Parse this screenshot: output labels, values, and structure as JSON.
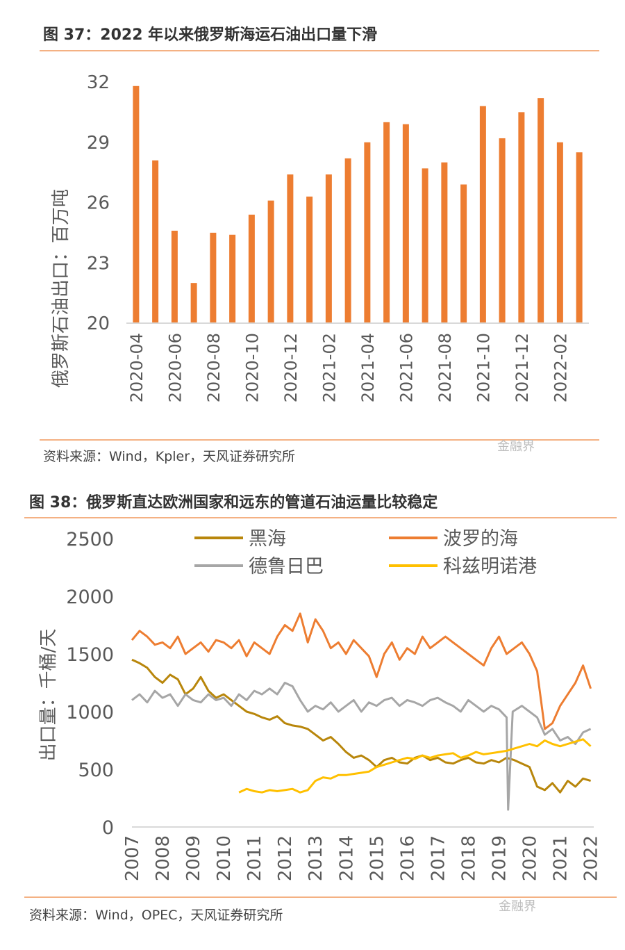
{
  "figures": [
    {
      "title": "图 37：2022 年以来俄罗斯海运石油出口量下滑",
      "source": "资料来源：Wind，Kpler，天风证券研究所",
      "watermark": "金融界"
    },
    {
      "title": "图 38：俄罗斯直达欧洲国家和远东的管道石油运量比较稳定",
      "source": "资料来源：Wind，OPEC，天风证券研究所",
      "watermark": "金融界"
    }
  ],
  "chart_data": [
    {
      "type": "bar",
      "title": "图 37：2022 年以来俄罗斯海运石油出口量下滑",
      "ylabel": "俄罗斯石油出口：百万吨",
      "xlabel": "",
      "ylim": [
        20,
        32
      ],
      "yticks": [
        20,
        23,
        26,
        29,
        32
      ],
      "grid": false,
      "color": "#ed7d31",
      "categories": [
        "2020-04",
        "2020-05",
        "2020-06",
        "2020-07",
        "2020-08",
        "2020-09",
        "2020-10",
        "2020-11",
        "2020-12",
        "2021-01",
        "2021-02",
        "2021-03",
        "2021-04",
        "2021-05",
        "2021-06",
        "2021-07",
        "2021-08",
        "2021-09",
        "2021-10",
        "2021-11",
        "2021-12",
        "2022-01",
        "2022-02",
        "2022-03"
      ],
      "xtick_labels": [
        "2020-04",
        "2020-06",
        "2020-08",
        "2020-10",
        "2020-12",
        "2021-02",
        "2021-04",
        "2021-06",
        "2021-08",
        "2021-10",
        "2021-12",
        "2022-02"
      ],
      "values": [
        31.8,
        28.1,
        24.6,
        22.0,
        24.5,
        24.4,
        25.4,
        26.1,
        27.4,
        26.3,
        27.4,
        28.2,
        29.0,
        30.0,
        29.9,
        27.7,
        28.0,
        26.9,
        30.8,
        29.2,
        30.5,
        31.2,
        29.0,
        28.5
      ]
    },
    {
      "type": "line",
      "title": "图 38：俄罗斯直达欧洲国家和远东的管道石油运量比较稳定",
      "ylabel": "出口量：千桶/天",
      "xlabel": "",
      "ylim": [
        0,
        2500
      ],
      "yticks": [
        0,
        500,
        1000,
        1500,
        2000,
        2500
      ],
      "xlim": [
        2007,
        2022.1
      ],
      "xticks": [
        2007,
        2008,
        2009,
        2010,
        2011,
        2012,
        2013,
        2014,
        2015,
        2016,
        2017,
        2018,
        2019,
        2020,
        2021,
        2022
      ],
      "grid": false,
      "legend": "top",
      "series": [
        {
          "name": "黑海",
          "color": "#b8860b",
          "x": [
            2007.0,
            2007.25,
            2007.5,
            2007.75,
            2008.0,
            2008.25,
            2008.5,
            2008.75,
            2009.0,
            2009.25,
            2009.5,
            2009.75,
            2010.0,
            2010.25,
            2010.5,
            2010.75,
            2011.0,
            2011.25,
            2011.5,
            2011.75,
            2012.0,
            2012.25,
            2012.5,
            2012.75,
            2013.0,
            2013.25,
            2013.5,
            2013.75,
            2014.0,
            2014.25,
            2014.5,
            2014.75,
            2015.0,
            2015.25,
            2015.5,
            2015.75,
            2016.0,
            2016.25,
            2016.5,
            2016.75,
            2017.0,
            2017.25,
            2017.5,
            2017.75,
            2018.0,
            2018.25,
            2018.5,
            2018.75,
            2019.0,
            2019.25,
            2019.5,
            2019.75,
            2020.0,
            2020.25,
            2020.5,
            2020.75,
            2021.0,
            2021.25,
            2021.5,
            2021.75,
            2022.0
          ],
          "y": [
            1450,
            1420,
            1380,
            1300,
            1250,
            1320,
            1280,
            1150,
            1200,
            1300,
            1180,
            1120,
            1150,
            1100,
            1050,
            1000,
            980,
            950,
            930,
            960,
            900,
            880,
            870,
            850,
            800,
            750,
            780,
            720,
            650,
            600,
            620,
            580,
            520,
            580,
            600,
            560,
            550,
            600,
            620,
            580,
            600,
            560,
            550,
            580,
            600,
            560,
            550,
            580,
            560,
            600,
            580,
            550,
            520,
            350,
            320,
            380,
            300,
            400,
            350,
            420,
            400
          ]
        },
        {
          "name": "波罗的海",
          "color": "#ed7d31",
          "x": [
            2007.0,
            2007.25,
            2007.5,
            2007.75,
            2008.0,
            2008.25,
            2008.5,
            2008.75,
            2009.0,
            2009.25,
            2009.5,
            2009.75,
            2010.0,
            2010.25,
            2010.5,
            2010.75,
            2011.0,
            2011.25,
            2011.5,
            2011.75,
            2012.0,
            2012.25,
            2012.5,
            2012.75,
            2013.0,
            2013.25,
            2013.5,
            2013.75,
            2014.0,
            2014.25,
            2014.5,
            2014.75,
            2015.0,
            2015.25,
            2015.5,
            2015.75,
            2016.0,
            2016.25,
            2016.5,
            2016.75,
            2017.0,
            2017.25,
            2017.5,
            2017.75,
            2018.0,
            2018.25,
            2018.5,
            2018.75,
            2019.0,
            2019.25,
            2019.5,
            2019.75,
            2020.0,
            2020.25,
            2020.5,
            2020.75,
            2021.0,
            2021.25,
            2021.5,
            2021.75,
            2022.0
          ],
          "y": [
            1620,
            1700,
            1650,
            1580,
            1600,
            1550,
            1650,
            1500,
            1550,
            1600,
            1520,
            1620,
            1600,
            1550,
            1620,
            1480,
            1600,
            1550,
            1500,
            1650,
            1750,
            1700,
            1850,
            1600,
            1800,
            1700,
            1550,
            1600,
            1500,
            1620,
            1550,
            1480,
            1300,
            1500,
            1600,
            1450,
            1550,
            1500,
            1650,
            1550,
            1600,
            1650,
            1600,
            1550,
            1500,
            1450,
            1400,
            1550,
            1650,
            1500,
            1550,
            1600,
            1500,
            1350,
            850,
            900,
            1050,
            1150,
            1250,
            1400,
            1200
          ]
        },
        {
          "name": "德鲁日巴",
          "color": "#a6a6a6",
          "x": [
            2007.0,
            2007.25,
            2007.5,
            2007.75,
            2008.0,
            2008.25,
            2008.5,
            2008.75,
            2009.0,
            2009.25,
            2009.5,
            2009.75,
            2010.0,
            2010.25,
            2010.5,
            2010.75,
            2011.0,
            2011.25,
            2011.5,
            2011.75,
            2012.0,
            2012.25,
            2012.5,
            2012.75,
            2013.0,
            2013.25,
            2013.5,
            2013.75,
            2014.0,
            2014.25,
            2014.5,
            2014.75,
            2015.0,
            2015.25,
            2015.5,
            2015.75,
            2016.0,
            2016.25,
            2016.5,
            2016.75,
            2017.0,
            2017.25,
            2017.5,
            2017.75,
            2018.0,
            2018.25,
            2018.5,
            2018.75,
            2019.0,
            2019.25,
            2019.3,
            2019.45,
            2019.75,
            2020.0,
            2020.25,
            2020.5,
            2020.75,
            2021.0,
            2021.25,
            2021.5,
            2021.75,
            2022.0
          ],
          "y": [
            1100,
            1150,
            1080,
            1180,
            1120,
            1150,
            1050,
            1150,
            1100,
            1080,
            1150,
            1100,
            1120,
            1050,
            1150,
            1100,
            1180,
            1150,
            1200,
            1150,
            1250,
            1220,
            1100,
            1000,
            1050,
            1020,
            1080,
            1000,
            1050,
            1100,
            1000,
            1080,
            1050,
            1100,
            1120,
            1050,
            1100,
            1080,
            1050,
            1100,
            1120,
            1080,
            1050,
            1000,
            1100,
            1050,
            1000,
            1050,
            1020,
            950,
            150,
            1000,
            1050,
            1000,
            950,
            800,
            850,
            750,
            780,
            720,
            820,
            850
          ]
        },
        {
          "name": "科兹明诺港",
          "color": "#ffc000",
          "x": [
            2010.5,
            2010.75,
            2011.0,
            2011.25,
            2011.5,
            2011.75,
            2012.0,
            2012.25,
            2012.5,
            2012.75,
            2013.0,
            2013.25,
            2013.5,
            2013.75,
            2014.0,
            2014.25,
            2014.5,
            2014.75,
            2015.0,
            2015.25,
            2015.5,
            2015.75,
            2016.0,
            2016.25,
            2016.5,
            2016.75,
            2017.0,
            2017.25,
            2017.5,
            2017.75,
            2018.0,
            2018.25,
            2018.5,
            2018.75,
            2019.0,
            2019.25,
            2019.5,
            2019.75,
            2020.0,
            2020.25,
            2020.5,
            2020.75,
            2021.0,
            2021.25,
            2021.5,
            2021.75,
            2022.0
          ],
          "y": [
            300,
            330,
            310,
            300,
            320,
            310,
            320,
            330,
            300,
            320,
            400,
            430,
            420,
            450,
            450,
            460,
            470,
            480,
            520,
            540,
            560,
            580,
            600,
            590,
            620,
            600,
            620,
            630,
            640,
            600,
            620,
            650,
            630,
            640,
            650,
            660,
            680,
            700,
            720,
            700,
            750,
            720,
            700,
            720,
            740,
            760,
            700
          ]
        }
      ]
    }
  ]
}
